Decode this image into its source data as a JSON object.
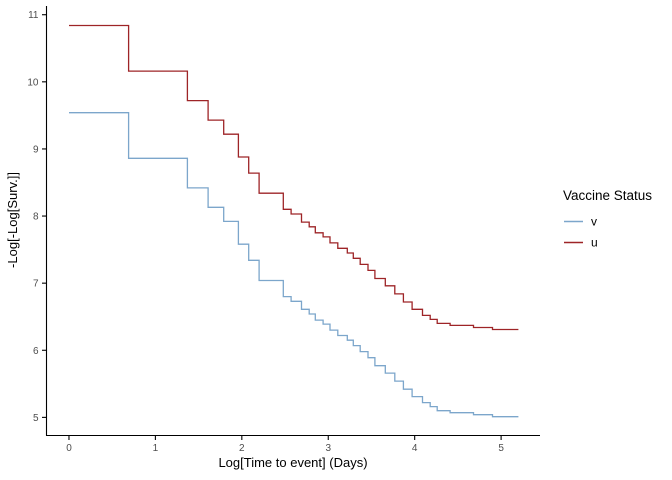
{
  "chart_data": {
    "type": "line",
    "subtype": "step-function-survival-cloglog",
    "title": "",
    "xlabel": "Log[Time to event] (Days)",
    "ylabel": "-Log[-Log[Surv.]]",
    "xlim": [
      -0.26,
      5.45
    ],
    "ylim": [
      4.73,
      11.13
    ],
    "x_ticks": [
      0,
      1,
      2,
      3,
      4,
      5
    ],
    "y_ticks": [
      5,
      6,
      7,
      8,
      9,
      10,
      11
    ],
    "grid": false,
    "background": "#ffffff",
    "axis_line_color": "#000000",
    "tick_label_color": "#4D4D4D",
    "x_end": 5.2,
    "step_x": [
      0.0,
      0.69,
      1.37,
      1.61,
      1.79,
      1.96,
      2.08,
      2.2,
      2.48,
      2.57,
      2.69,
      2.78,
      2.85,
      2.94,
      3.02,
      3.11,
      3.22,
      3.29,
      3.37,
      3.46,
      3.54,
      3.66,
      3.77,
      3.87,
      3.97,
      4.09,
      4.18,
      4.26,
      4.41,
      4.68,
      4.9
    ],
    "series": [
      {
        "name": "v",
        "color": "#7CA6CB",
        "levels": [
          9.54,
          8.86,
          8.42,
          8.13,
          7.92,
          7.58,
          7.34,
          7.04,
          6.8,
          6.73,
          6.61,
          6.54,
          6.45,
          6.39,
          6.3,
          6.22,
          6.15,
          6.07,
          5.98,
          5.89,
          5.77,
          5.66,
          5.54,
          5.42,
          5.31,
          5.22,
          5.16,
          5.1,
          5.07,
          5.04,
          5.01
        ]
      },
      {
        "name": "u",
        "color": "#9E2427",
        "levels": [
          10.84,
          10.16,
          9.72,
          9.43,
          9.22,
          8.88,
          8.64,
          8.34,
          8.1,
          8.03,
          7.91,
          7.84,
          7.75,
          7.69,
          7.6,
          7.52,
          7.45,
          7.37,
          7.28,
          7.19,
          7.07,
          6.96,
          6.84,
          6.72,
          6.61,
          6.52,
          6.46,
          6.4,
          6.37,
          6.34,
          6.31
        ]
      }
    ],
    "legend": {
      "title": "Vaccine Status",
      "position": "right",
      "entries": [
        {
          "label": "v",
          "color": "#7CA6CB"
        },
        {
          "label": "u",
          "color": "#9E2427"
        }
      ]
    }
  }
}
